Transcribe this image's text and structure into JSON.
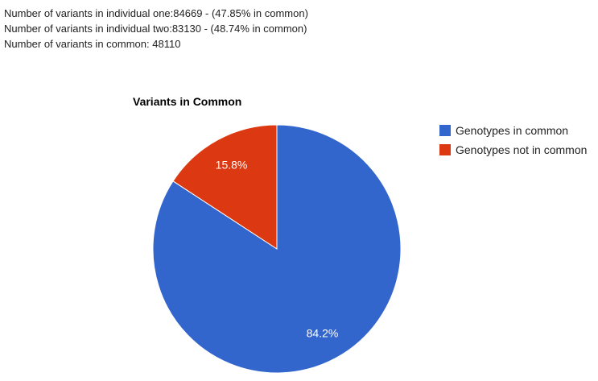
{
  "stats": {
    "line1": "Number of variants in individual one:84669 - (47.85% in common)",
    "line2": "Number of variants in individual two:83130 - (48.74% in common)",
    "line3": "Number of variants in common: 48110"
  },
  "chart_data": {
    "type": "pie",
    "title": "Variants in Common",
    "legend_position": "right",
    "slices": [
      {
        "name": "Genotypes in common",
        "value": 84.2,
        "label": "84.2%",
        "color": "#3366cc"
      },
      {
        "name": "Genotypes not in common",
        "value": 15.8,
        "label": "15.8%",
        "color": "#dc3912"
      }
    ]
  }
}
